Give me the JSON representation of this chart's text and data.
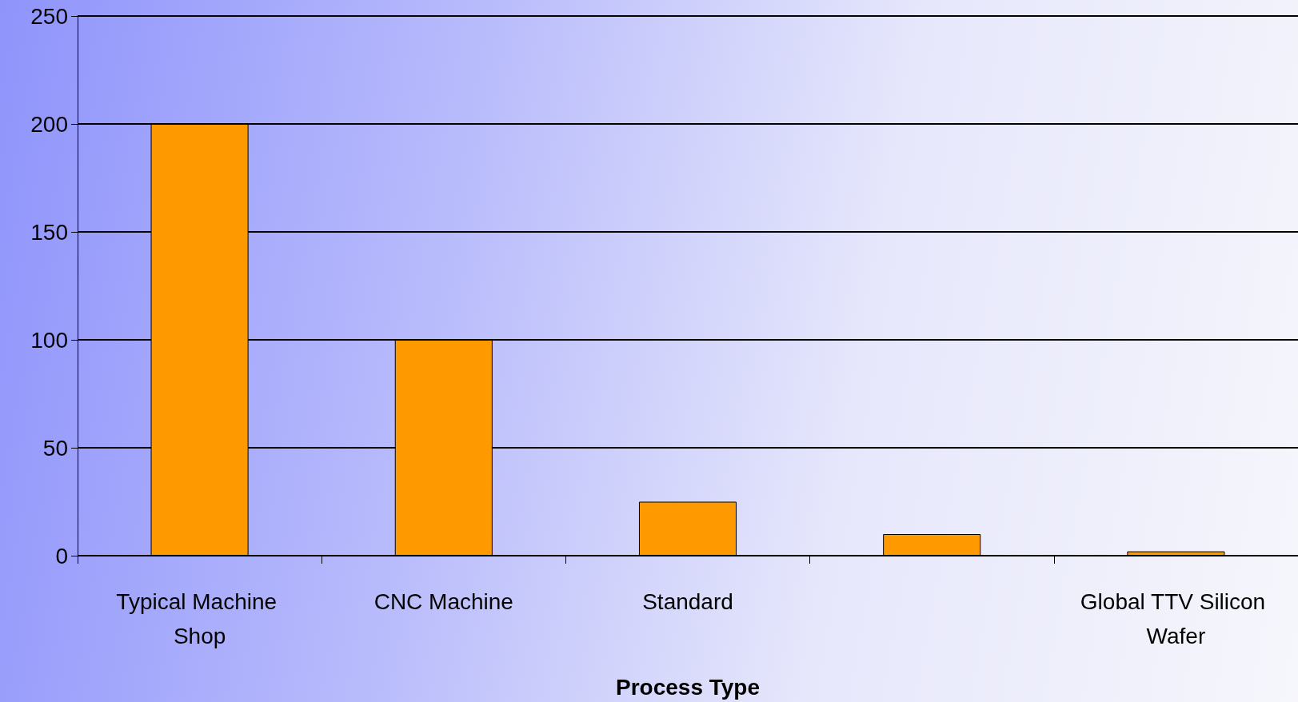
{
  "chart_data": {
    "type": "bar",
    "xlabel": "Process Type",
    "categories": [
      "Typical Machine Shop",
      "CNC Machine",
      "Standard",
      null,
      "Global TTV Silicon Wafer"
    ],
    "values": [
      200,
      100,
      25,
      10,
      2
    ],
    "color": "#ff9900",
    "ylim": [
      0,
      250
    ],
    "yticks": [
      0,
      50,
      100,
      150,
      200,
      250
    ],
    "grid": "y"
  }
}
